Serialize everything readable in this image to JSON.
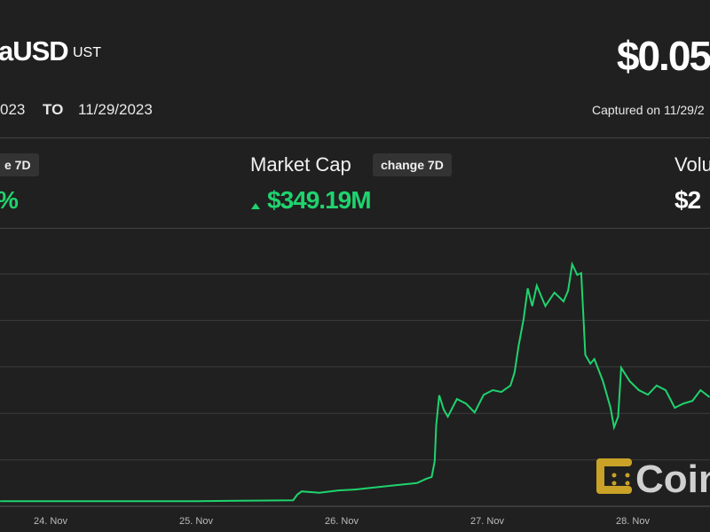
{
  "header": {
    "name": "aUSD",
    "symbol": "UST",
    "price": "$0.05",
    "range_from": "023",
    "range_to_label": "TO",
    "range_to": "11/29/2023",
    "captured": "Captured on 11/29/2"
  },
  "stats": [
    {
      "badge": "e 7D",
      "value": "%"
    },
    {
      "label": "Market Cap",
      "badge": "change 7D",
      "value": "$349.19M",
      "trend_icon": "triangle-up-icon"
    },
    {
      "label": "Volu",
      "value": "$2"
    }
  ],
  "colors": {
    "background": "#202020",
    "line": "#1fd36e",
    "grid": "#3c3c3c",
    "logo": "#c9a227"
  },
  "logo": {
    "text": "Coin"
  },
  "chart_data": {
    "type": "line",
    "title": "",
    "xlabel": "",
    "ylabel": "",
    "grid": true,
    "x_ticks": [
      "24. Nov",
      "25. Nov",
      "26. Nov",
      "27. Nov",
      "28. Nov"
    ],
    "ylim": [
      0,
      5.25
    ],
    "points": [
      [
        "2023-11-23T15:40",
        0.11
      ],
      [
        "2023-11-25T00:00",
        0.11
      ],
      [
        "2023-11-25T16:00",
        0.13
      ],
      [
        "2023-11-25T16:40",
        0.25
      ],
      [
        "2023-11-25T17:25",
        0.32
      ],
      [
        "2023-11-25T20:20",
        0.29
      ],
      [
        "2023-11-25T23:20",
        0.34
      ],
      [
        "2023-11-26T02:10",
        0.36
      ],
      [
        "2023-11-26T05:05",
        0.4
      ],
      [
        "2023-11-26T08:00",
        0.44
      ],
      [
        "2023-11-26T11:00",
        0.48
      ],
      [
        "2023-11-26T12:25",
        0.5
      ],
      [
        "2023-11-26T13:55",
        0.59
      ],
      [
        "2023-11-26T14:50",
        0.63
      ],
      [
        "2023-11-26T15:20",
        0.97
      ],
      [
        "2023-11-26T15:35",
        1.74
      ],
      [
        "2023-11-26T16:05",
        2.39
      ],
      [
        "2023-11-26T16:50",
        2.08
      ],
      [
        "2023-11-26T17:30",
        1.93
      ],
      [
        "2023-11-26T19:00",
        2.31
      ],
      [
        "2023-11-26T20:30",
        2.21
      ],
      [
        "2023-11-26T21:55",
        2.02
      ],
      [
        "2023-11-26T23:25",
        2.4
      ],
      [
        "2023-11-27T00:55",
        2.5
      ],
      [
        "2023-11-27T02:20",
        2.46
      ],
      [
        "2023-11-27T03:50",
        2.6
      ],
      [
        "2023-11-27T04:30",
        2.88
      ],
      [
        "2023-11-27T05:10",
        3.45
      ],
      [
        "2023-11-27T06:00",
        4.03
      ],
      [
        "2023-11-27T06:40",
        4.69
      ],
      [
        "2023-11-27T07:25",
        4.31
      ],
      [
        "2023-11-27T08:10",
        4.75
      ],
      [
        "2023-11-27T09:35",
        4.31
      ],
      [
        "2023-11-27T11:05",
        4.6
      ],
      [
        "2023-11-27T12:35",
        4.41
      ],
      [
        "2023-11-27T13:20",
        4.64
      ],
      [
        "2023-11-27T14:00",
        5.21
      ],
      [
        "2023-11-27T14:50",
        4.98
      ],
      [
        "2023-11-27T15:30",
        5.02
      ],
      [
        "2023-11-27T16:10",
        3.26
      ],
      [
        "2023-11-27T17:00",
        3.07
      ],
      [
        "2023-11-27T17:40",
        3.17
      ],
      [
        "2023-11-27T19:05",
        2.69
      ],
      [
        "2023-11-27T20:20",
        2.12
      ],
      [
        "2023-11-27T20:55",
        1.7
      ],
      [
        "2023-11-27T21:35",
        1.93
      ],
      [
        "2023-11-27T22:05",
        2.98
      ],
      [
        "2023-11-27T23:30",
        2.69
      ],
      [
        "2023-11-28T01:00",
        2.5
      ],
      [
        "2023-11-28T02:30",
        2.4
      ],
      [
        "2023-11-28T03:55",
        2.6
      ],
      [
        "2023-11-28T05:25",
        2.5
      ],
      [
        "2023-11-28T06:55",
        2.12
      ],
      [
        "2023-11-28T08:20",
        2.21
      ],
      [
        "2023-11-28T09:50",
        2.27
      ],
      [
        "2023-11-28T11:10",
        2.5
      ],
      [
        "2023-11-28T12:40",
        2.35
      ]
    ]
  }
}
